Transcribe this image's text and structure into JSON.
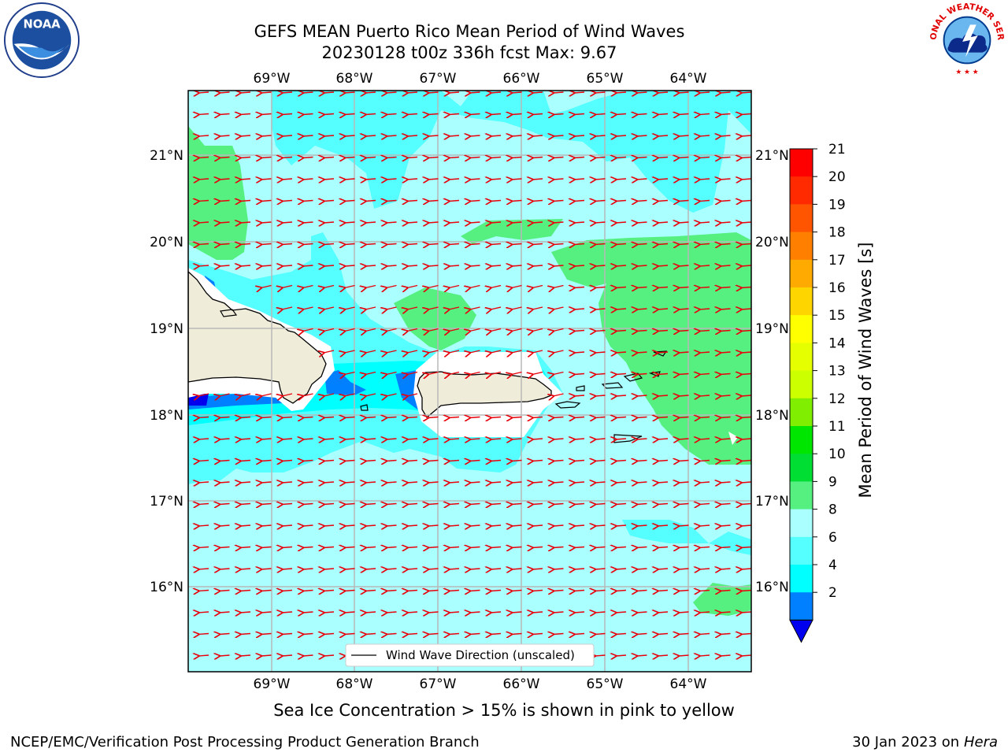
{
  "title": {
    "line1": "GEFS MEAN Puerto Rico Mean Period of Wind Waves",
    "line2": "20230128 t00z 336h fcst   Max: 9.67"
  },
  "logos": {
    "left": "noaa-logo",
    "right": "nws-logo",
    "left_text": "NOAA",
    "left_ring": "NATIONAL OCEANIC AND ATMOSPHERIC ADMINISTRATION · U.S. DEPARTMENT OF COMMERCE",
    "right_ring": "NATIONAL WEATHER SERVICE"
  },
  "map": {
    "lon_labels": [
      "69°W",
      "68°W",
      "67°W",
      "66°W",
      "65°W",
      "64°W"
    ],
    "lat_labels": [
      "21°N",
      "20°N",
      "19°N",
      "18°N",
      "17°N",
      "16°N"
    ],
    "grid": true,
    "legend_text": "Wind Wave Direction (unscaled)",
    "arrow_color": "#e8000b",
    "wind_direction": "toward west (easterly trades)"
  },
  "colorbar": {
    "label": "Mean Period of Wind Waves [s]",
    "ticks": [
      "21",
      "20",
      "19",
      "18",
      "17",
      "16",
      "15",
      "14",
      "13",
      "12",
      "11",
      "10",
      "9",
      "8",
      "6",
      "4",
      "2"
    ],
    "colors": [
      "#ff0000",
      "#ff2a00",
      "#ff5500",
      "#ff8000",
      "#ffaa00",
      "#ffd500",
      "#ffff00",
      "#e6ff00",
      "#ccff00",
      "#80ee00",
      "#00e600",
      "#00dd33",
      "#55f080",
      "#aaffff",
      "#55ffff",
      "#00ffff",
      "#0080ff",
      "#0000ee"
    ]
  },
  "footer": {
    "note": "Sea Ice Concentration > 15% is shown in pink to yellow",
    "credit": "NCEP/EMC/Verification Post Processing Product Generation Branch",
    "date": "30 Jan 2023 on",
    "host": "Hera"
  }
}
